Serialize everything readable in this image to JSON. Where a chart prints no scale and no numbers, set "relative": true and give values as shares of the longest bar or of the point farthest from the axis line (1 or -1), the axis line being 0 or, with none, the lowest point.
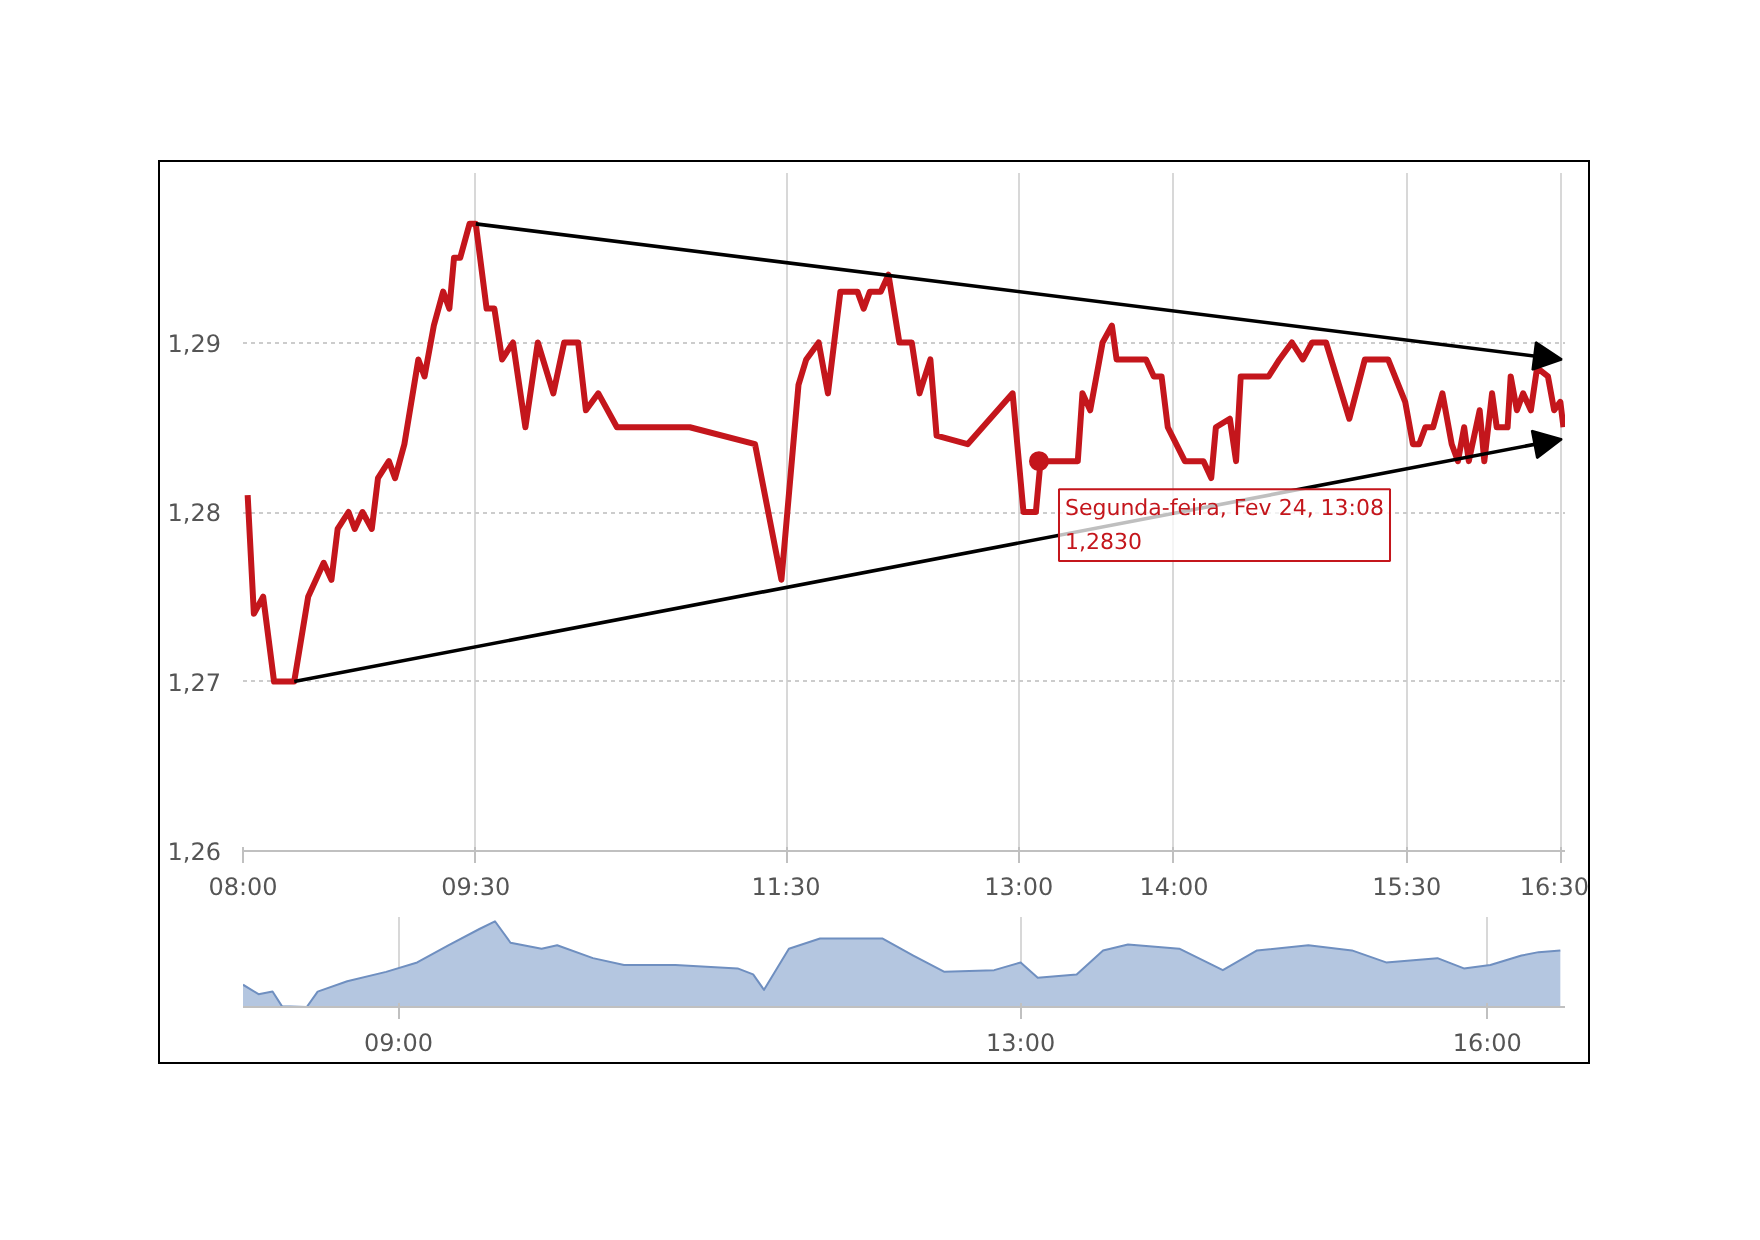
{
  "chart_data": [
    {
      "type": "line",
      "x": [
        8.03,
        8.07,
        8.13,
        8.2,
        8.33,
        8.42,
        8.52,
        8.57,
        8.61,
        8.68,
        8.72,
        8.77,
        8.83,
        8.87,
        8.94,
        8.98,
        9.04,
        9.13,
        9.17,
        9.23,
        9.29,
        9.33,
        9.36,
        9.4,
        9.46,
        9.5,
        9.57,
        9.62,
        9.67,
        9.74,
        9.82,
        9.9,
        10.0,
        10.07,
        10.16,
        10.21,
        10.29,
        10.41,
        10.88,
        11.3,
        11.47,
        11.58,
        11.63,
        11.71,
        11.77,
        11.85,
        11.96,
        12.0,
        12.04,
        12.11,
        12.16,
        12.23,
        12.31,
        12.36,
        12.43,
        12.47,
        12.67,
        12.96,
        13.03,
        13.11,
        13.14,
        13.38,
        13.41,
        13.46,
        13.51,
        13.54,
        13.6,
        13.63,
        13.82,
        13.87,
        13.92,
        13.96,
        14.07,
        14.19,
        14.24,
        14.27,
        14.36,
        14.4,
        14.43,
        14.61,
        14.68,
        14.76,
        14.83,
        14.89,
        14.98,
        15.13,
        15.23,
        15.38,
        15.49,
        15.54,
        15.58,
        15.62,
        15.67,
        15.73,
        15.79,
        15.83,
        15.87,
        15.9,
        15.97,
        16.0,
        16.05,
        16.08,
        16.15,
        16.17,
        16.21,
        16.25,
        16.3,
        16.34,
        16.41,
        16.45,
        16.49,
        16.51
      ],
      "series": [
        {
          "color": "#c4161c",
          "values": [
            1.281,
            1.274,
            1.275,
            1.27,
            1.27,
            1.275,
            1.277,
            1.276,
            1.279,
            1.28,
            1.279,
            1.28,
            1.279,
            1.282,
            1.283,
            1.282,
            1.284,
            1.289,
            1.288,
            1.291,
            1.293,
            1.292,
            1.295,
            1.295,
            1.297,
            1.297,
            1.292,
            1.292,
            1.289,
            1.29,
            1.285,
            1.29,
            1.287,
            1.29,
            1.29,
            1.286,
            1.287,
            1.285,
            1.285,
            1.284,
            1.276,
            1.2875,
            1.289,
            1.29,
            1.287,
            1.293,
            1.293,
            1.292,
            1.293,
            1.293,
            1.294,
            1.29,
            1.29,
            1.287,
            1.289,
            1.2845,
            1.284,
            1.287,
            1.28,
            1.28,
            1.283,
            1.283,
            1.287,
            1.286,
            1.2885,
            1.29,
            1.291,
            1.289,
            1.289,
            1.288,
            1.288,
            1.285,
            1.283,
            1.283,
            1.282,
            1.285,
            1.2855,
            1.283,
            1.288,
            1.288,
            1.289,
            1.29,
            1.289,
            1.29,
            1.29,
            1.2855,
            1.289,
            1.289,
            1.2865,
            1.284,
            1.284,
            1.285,
            1.285,
            1.287,
            1.284,
            1.283,
            1.285,
            1.283,
            1.286,
            1.283,
            1.287,
            1.285,
            1.285,
            1.288,
            1.286,
            1.287,
            1.286,
            1.2885,
            1.288,
            1.286,
            1.2865,
            1.285
          ]
        }
      ],
      "xlim": [
        8,
        16.52
      ],
      "ylim": [
        1.26,
        1.3
      ],
      "xticks": [
        {
          "value": 8,
          "label": "08:00"
        },
        {
          "value": 9.5,
          "label": "09:30"
        },
        {
          "value": 11.5,
          "label": "11:30"
        },
        {
          "value": 13,
          "label": "13:00"
        },
        {
          "value": 14,
          "label": "14:00"
        },
        {
          "value": 15.5,
          "label": "15:30"
        },
        {
          "value": 16.5,
          "label": "16:30"
        }
      ],
      "yticks": [
        {
          "value": 1.26,
          "label": "1,26"
        },
        {
          "value": 1.27,
          "label": "1,27"
        },
        {
          "value": 1.28,
          "label": "1,28"
        },
        {
          "value": 1.29,
          "label": "1,29"
        }
      ],
      "grid": true,
      "line_style": "solid",
      "marker": "none",
      "annotations": [
        {
          "text": "Segunda-feira, Fev 24, 13:08\n1,2830",
          "x": 13.13,
          "y": 1.283
        }
      ]
    },
    {
      "type": "area",
      "relative": true,
      "x": [
        8.0,
        8.1,
        8.19,
        8.25,
        8.41,
        8.48,
        8.67,
        8.92,
        9.12,
        9.32,
        9.52,
        9.62,
        9.72,
        9.92,
        10.02,
        10.25,
        10.45,
        10.78,
        11.18,
        11.28,
        11.35,
        11.51,
        11.71,
        12.11,
        12.31,
        12.51,
        12.83,
        13.0,
        13.11,
        13.36,
        13.53,
        13.69,
        14.02,
        14.3,
        14.52,
        14.85,
        15.13,
        15.35,
        15.68,
        15.85,
        16.02,
        16.22,
        16.33,
        16.47
      ],
      "series": [
        {
          "color": "#6f8fc0",
          "values": [
            0.26,
            0.15,
            0.18,
            0.01,
            0,
            0.18,
            0.3,
            0.41,
            0.52,
            0.72,
            0.91,
            1,
            0.75,
            0.68,
            0.72,
            0.57,
            0.49,
            0.49,
            0.45,
            0.38,
            0.2,
            0.68,
            0.8,
            0.8,
            0.6,
            0.41,
            0.43,
            0.52,
            0.34,
            0.38,
            0.66,
            0.73,
            0.68,
            0.43,
            0.66,
            0.72,
            0.66,
            0.52,
            0.57,
            0.45,
            0.49,
            0.6,
            0.64,
            0.66
          ]
        }
      ],
      "xlim": [
        8,
        16.5
      ],
      "xticks": [
        {
          "value": 9,
          "label": "09:00"
        },
        {
          "value": 13,
          "label": "13:00"
        },
        {
          "value": 16,
          "label": "16:00"
        }
      ],
      "grid": "x"
    }
  ]
}
